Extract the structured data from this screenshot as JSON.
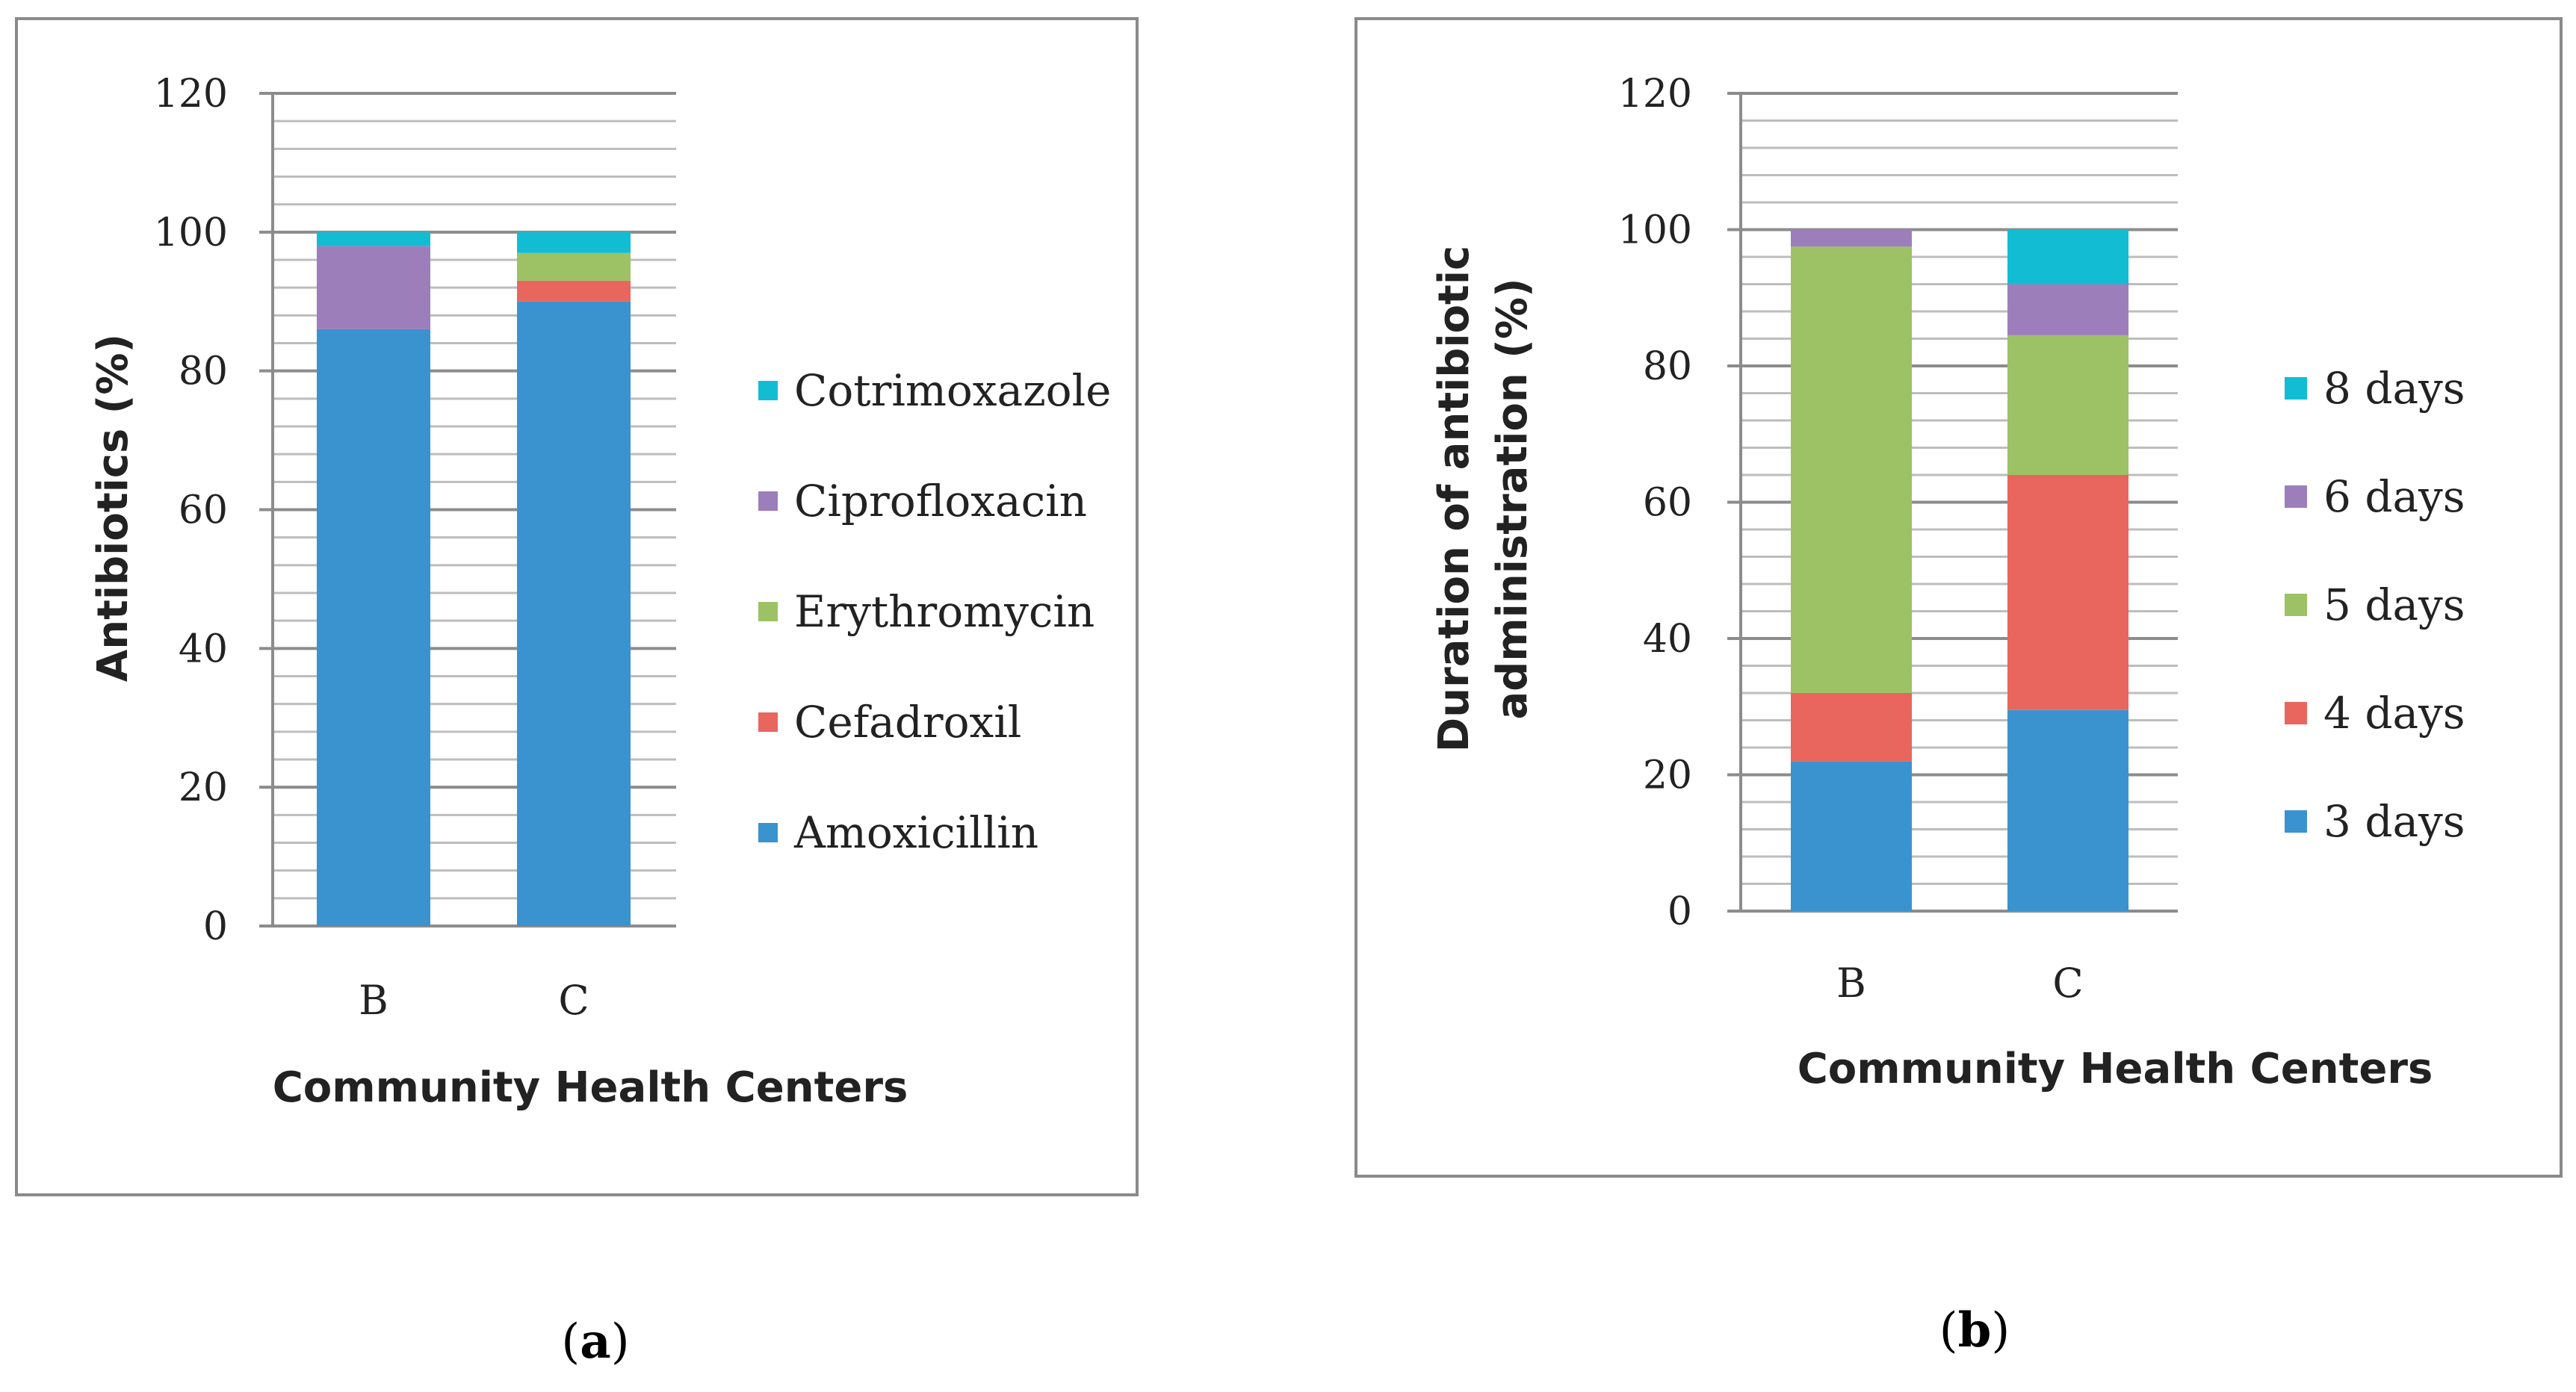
{
  "chart_data": [
    {
      "panel": "a",
      "type": "bar",
      "stacked": true,
      "categories": [
        "B",
        "C"
      ],
      "series": [
        {
          "name": "Amoxicillin",
          "color": "#3A93CF",
          "values": [
            86,
            90
          ]
        },
        {
          "name": "Cefadroxil",
          "color": "#E8665E",
          "values": [
            0,
            3
          ]
        },
        {
          "name": "Erythromycin",
          "color": "#9CC265",
          "values": [
            0,
            4
          ]
        },
        {
          "name": "Ciprofloxacin",
          "color": "#9C7FBA",
          "values": [
            12,
            0
          ]
        },
        {
          "name": "Cotrimoxazole",
          "color": "#12BDD3",
          "values": [
            2,
            3
          ]
        }
      ],
      "title": "",
      "xlabel": "Community Health Centers",
      "ylabel": "Antibiotics (%)",
      "ylim": [
        0,
        120
      ],
      "yticks": [
        0,
        20,
        40,
        60,
        80,
        100,
        120
      ],
      "legend_position": "right"
    },
    {
      "panel": "b",
      "type": "bar",
      "stacked": true,
      "categories": [
        "B",
        "C"
      ],
      "series": [
        {
          "name": "3 days",
          "color": "#3A93CF",
          "values": [
            22,
            29.5
          ]
        },
        {
          "name": "4 days",
          "color": "#E8665E",
          "values": [
            10,
            34.5
          ]
        },
        {
          "name": "5 days",
          "color": "#9CC265",
          "values": [
            65.5,
            20.5
          ]
        },
        {
          "name": "6 days",
          "color": "#9C7FBA",
          "values": [
            2.5,
            7.5
          ]
        },
        {
          "name": "8 days",
          "color": "#12BDD3",
          "values": [
            0,
            8
          ]
        }
      ],
      "title": "",
      "xlabel": "Community Health Centers",
      "ylabel_lines": [
        "Duration of antibiotic",
        "administration (%)"
      ],
      "ylim": [
        0,
        120
      ],
      "yticks": [
        0,
        20,
        40,
        60,
        80,
        100,
        120
      ],
      "legend_position": "right"
    }
  ],
  "panel_labels": {
    "a": {
      "open": "(",
      "letter": "a",
      "close": ")"
    },
    "b": {
      "open": "(",
      "letter": "b",
      "close": ")"
    }
  }
}
